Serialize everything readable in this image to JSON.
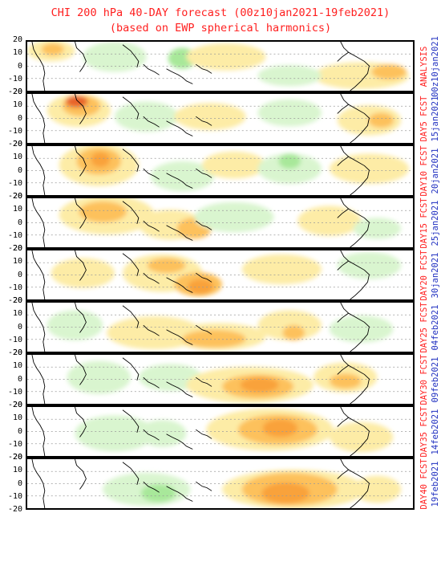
{
  "title": {
    "line1": "CHI 200 hPa 40-DAY forecast (00z10jan2021-19feb2021)",
    "line2": "(based on EWP spherical harmonics)"
  },
  "y_ticks": [
    "20",
    "10",
    "0",
    "-10",
    "-20"
  ],
  "colors": {
    "title": "#ff2020",
    "left_label": "#ff2020",
    "right_label": "#2030c0",
    "divergence_light": "#fdeca6",
    "divergence_mid": "#fdc15b",
    "divergence_strong": "#f9a23a",
    "divergence_max": "#e8632a",
    "convergence_light": "#d9f5cf",
    "convergence_mid": "#a8e89a"
  },
  "panels": [
    {
      "label": "ANALYSIS",
      "date": "00z10jan2021"
    },
    {
      "label": "DAY5 FCST",
      "date": "15jan2021"
    },
    {
      "label": "DAY10 FCST",
      "date": "20jan2021"
    },
    {
      "label": "DAY15 FCST",
      "date": "25jan2021"
    },
    {
      "label": "DAY20 FCST",
      "date": "30jan2021"
    },
    {
      "label": "DAY25 FCST",
      "date": "04feb2021"
    },
    {
      "label": "DAY30 FCST",
      "date": "09feb2021"
    },
    {
      "label": "DAY35 FCST",
      "date": "14feb2021"
    },
    {
      "label": "DAY40 FCST",
      "date": "19feb2021"
    }
  ]
}
